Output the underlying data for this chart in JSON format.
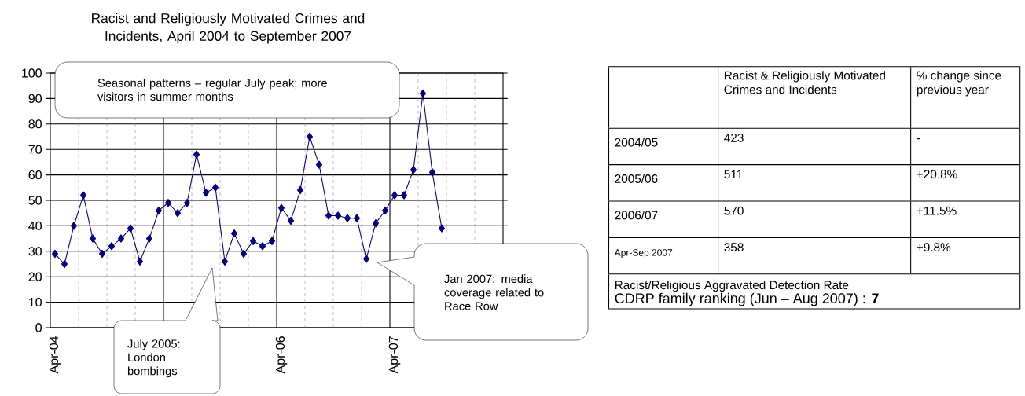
{
  "chart_data": [
    {
      "type": "line",
      "title": "Racist and Religiously Motivated Crimes and Incidents, April 2004 to September 2007",
      "categories": [
        "Apr-04",
        null,
        null,
        null,
        null,
        null,
        null,
        null,
        null,
        null,
        null,
        null,
        null,
        null,
        null,
        null,
        null,
        null,
        null,
        null,
        null,
        null,
        null,
        null,
        "Apr-06",
        null,
        null,
        null,
        null,
        null,
        null,
        null,
        null,
        null,
        null,
        null,
        "Apr-07",
        null,
        null,
        null,
        null,
        null
      ],
      "series": [
        {
          "color": "#000080",
          "values": [
            29,
            25,
            40,
            52,
            35,
            29,
            32,
            35,
            39,
            26,
            35,
            46,
            49,
            45,
            49,
            68,
            53,
            55,
            26,
            37,
            29,
            34,
            32,
            34,
            47,
            42,
            54,
            75,
            64,
            44,
            44,
            43,
            43,
            27,
            41,
            46,
            52,
            52,
            62,
            92,
            61,
            39
          ]
        }
      ],
      "ylim": [
        0,
        100
      ],
      "yticks": [
        0,
        10,
        20,
        30,
        40,
        50,
        60,
        70,
        80,
        90,
        100
      ],
      "grid": true,
      "marker": "diamond",
      "line_style": "solid",
      "annotations": [
        "Seasonal patterns – regular July peak; more visitors in summer months",
        "July 2005: London bombings",
        "Jan 2007: media coverage related to Race Row"
      ]
    },
    {
      "type": "other",
      "annotations": [
        "Racist & Religiously Motivated Crimes and Incidents",
        "% change since previous year",
        "2004/05",
        "423",
        "-",
        "2005/06",
        "511",
        "+20.8%",
        "2006/07",
        "570",
        "+11.5%",
        "Apr-Sep 2007",
        "358",
        "+9.8%",
        "Racist/Religious Aggravated Detection Rate",
        "CDRP family ranking (Jun – Aug 2007) : **7**"
      ]
    }
  ]
}
